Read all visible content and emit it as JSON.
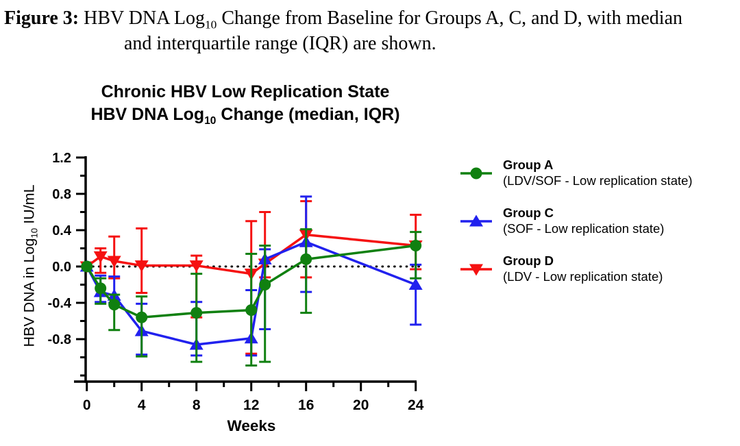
{
  "caption": {
    "label": "Figure 3:",
    "text_pre": " HBV DNA Log",
    "sub": "10",
    "text_post": " Change from Baseline for Groups A, C, and D, with median",
    "line2": "and interquartile range (IQR) are shown."
  },
  "chart": {
    "title1": "Chronic HBV Low Replication State",
    "title2_pre": "HBV DNA Log",
    "title2_sub": "10",
    "title2_post": " Change (median, IQR)",
    "ylabel_pre": "HBV DNA in Log",
    "ylabel_sub": "10",
    "ylabel_post": " IU/mL",
    "xlabel": "Weeks"
  },
  "legend": {
    "items": [
      {
        "name": "Group A",
        "desc": "(LDV/SOF - Low replication state)"
      },
      {
        "name": "Group C",
        "desc": "(SOF - Low replication state)"
      },
      {
        "name": "Group D",
        "desc": "(LDV - Low replication state)"
      }
    ]
  },
  "chart_data": {
    "type": "line",
    "title": "Chronic HBV Low Replication State - HBV DNA Log10 Change (median, IQR)",
    "xlabel": "Weeks",
    "ylabel": "HBV DNA in Log10 IU/mL",
    "x": [
      0,
      1,
      2,
      4,
      8,
      12,
      13,
      16,
      24
    ],
    "xticks_major": [
      0,
      4,
      8,
      12,
      16,
      20,
      24
    ],
    "xticks_minor": [
      2,
      6,
      10,
      14,
      18,
      22
    ],
    "yticks_major": [
      1.2,
      0.8,
      0.4,
      0.0,
      -0.4,
      -0.8
    ],
    "yticks_minor": [
      1.0,
      0.6,
      0.2,
      -0.2,
      -0.6,
      -1.0,
      -1.2
    ],
    "ylim": [
      -1.27,
      1.2
    ],
    "xlim": [
      -0.9,
      25
    ],
    "zero_reference_line": 0,
    "legend_position": "right",
    "series": [
      {
        "name": "Group A",
        "treatment": "LDV/SOF - Low replication state",
        "color": "#108010",
        "marker": "circle",
        "median": [
          0,
          -0.24,
          -0.42,
          -0.56,
          -0.51,
          -0.48,
          -0.2,
          0.08,
          0.23
        ],
        "q1": [
          0,
          -0.41,
          -0.7,
          -0.99,
          -1.05,
          -1.09,
          -1.05,
          -0.51,
          -0.13
        ],
        "q3": [
          0,
          -0.13,
          -0.31,
          -0.33,
          -0.08,
          0.14,
          0.23,
          0.41,
          0.38
        ]
      },
      {
        "name": "Group C",
        "treatment": "SOF - Low replication state",
        "color": "#2121ee",
        "marker": "triangle-up",
        "median": [
          0,
          -0.28,
          -0.32,
          -0.71,
          -0.86,
          -0.79,
          0.08,
          0.27,
          -0.2
        ],
        "q1": [
          0,
          -0.39,
          -0.4,
          -0.97,
          -0.98,
          -0.98,
          -0.69,
          -0.28,
          -0.64
        ],
        "q3": [
          0,
          -0.1,
          -0.11,
          -0.41,
          -0.39,
          -0.26,
          0.19,
          0.77,
          0.02
        ]
      },
      {
        "name": "Group D",
        "treatment": "LDV - Low replication state",
        "color": "#f51111",
        "marker": "triangle-down",
        "median": [
          0,
          0.11,
          0.06,
          0.01,
          0.01,
          -0.08,
          0.03,
          0.35,
          0.23
        ],
        "q1": [
          0,
          -0.07,
          -0.13,
          -0.29,
          -0.56,
          -0.96,
          -0.12,
          -0.12,
          -0.03
        ],
        "q3": [
          0,
          0.2,
          0.33,
          0.42,
          0.12,
          0.5,
          0.6,
          0.72,
          0.57
        ]
      }
    ]
  }
}
